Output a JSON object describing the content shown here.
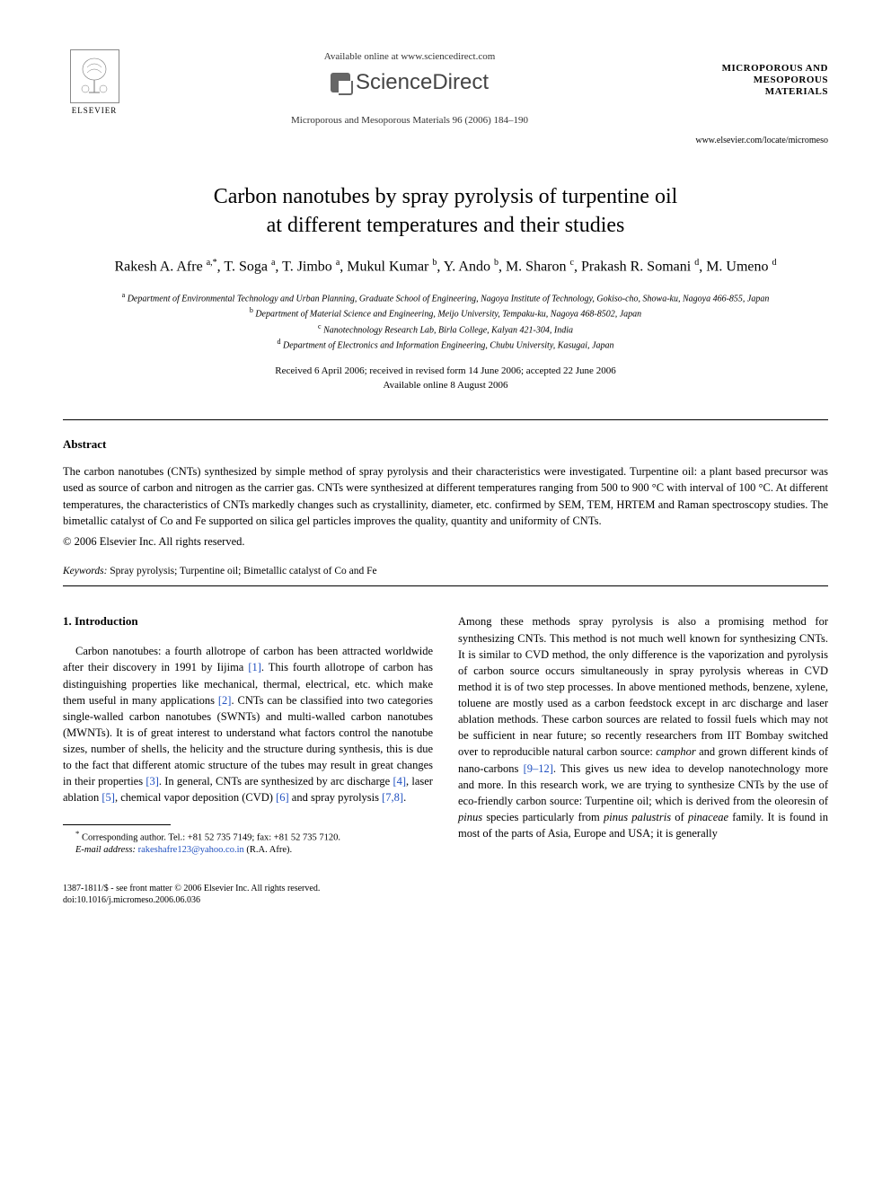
{
  "header": {
    "publisher": "ELSEVIER",
    "available_text": "Available online at www.sciencedirect.com",
    "sciencedirect": "ScienceDirect",
    "journal_ref": "Microporous and Mesoporous Materials 96 (2006) 184–190",
    "journal_title_line1": "MICROPOROUS AND",
    "journal_title_line2": "MESOPOROUS MATERIALS",
    "locate_url": "www.elsevier.com/locate/micromeso"
  },
  "title_line1": "Carbon nanotubes by spray pyrolysis of turpentine oil",
  "title_line2": "at different temperatures and their studies",
  "authors_html": "Rakesh A. Afre <sup>a,*</sup>, T. Soga <sup>a</sup>, T. Jimbo <sup>a</sup>, Mukul Kumar <sup>b</sup>, Y. Ando <sup>b</sup>, M. Sharon <sup>c</sup>, Prakash R. Somani <sup>d</sup>, M. Umeno <sup>d</sup>",
  "affiliations": {
    "a": "Department of Environmental Technology and Urban Planning, Graduate School of Engineering, Nagoya Institute of Technology, Gokiso-cho, Showa-ku, Nagoya 466-855, Japan",
    "b": "Department of Material Science and Engineering, Meijo University, Tempaku-ku, Nagoya 468-8502, Japan",
    "c": "Nanotechnology Research Lab, Birla College, Kalyan 421-304, India",
    "d": "Department of Electronics and Information Engineering, Chubu University, Kasugai, Japan"
  },
  "dates_line1": "Received 6 April 2006; received in revised form 14 June 2006; accepted 22 June 2006",
  "dates_line2": "Available online 8 August 2006",
  "abstract": {
    "heading": "Abstract",
    "text": "The carbon nanotubes (CNTs) synthesized by simple method of spray pyrolysis and their characteristics were investigated. Turpentine oil: a plant based precursor was used as source of carbon and nitrogen as the carrier gas. CNTs were synthesized at different temperatures ranging from 500 to 900 °C with interval of 100 °C. At different temperatures, the characteristics of CNTs markedly changes such as crystallinity, diameter, etc. confirmed by SEM, TEM, HRTEM and Raman spectroscopy studies. The bimetallic catalyst of Co and Fe supported on silica gel particles improves the quality, quantity and uniformity of CNTs.",
    "copyright": "© 2006 Elsevier Inc. All rights reserved."
  },
  "keywords": {
    "label": "Keywords:",
    "text": "Spray pyrolysis; Turpentine oil; Bimetallic catalyst of Co and Fe"
  },
  "section": {
    "heading": "1. Introduction",
    "col1_html": "Carbon nanotubes: a fourth allotrope of carbon has been attracted worldwide after their discovery in 1991 by Iijima <span class=\"ref-link\">[1]</span>. This fourth allotrope of carbon has distinguishing properties like mechanical, thermal, electrical, etc. which make them useful in many applications <span class=\"ref-link\">[2]</span>. CNTs can be classified into two categories single-walled carbon nanotubes (SWNTs) and multi-walled carbon nanotubes (MWNTs). It is of great interest to understand what factors control the nanotube sizes, number of shells, the helicity and the structure during synthesis, this is due to the fact that different atomic structure of the tubes may result in great changes in their properties <span class=\"ref-link\">[3]</span>. In general, CNTs are synthesized by arc discharge <span class=\"ref-link\">[4]</span>, laser ablation <span class=\"ref-link\">[5]</span>, chemical vapor deposition (CVD) <span class=\"ref-link\">[6]</span> and spray pyrolysis <span class=\"ref-link\">[7,8]</span>.",
    "col2_html": "Among these methods spray pyrolysis is also a promising method for synthesizing CNTs. This method is not much well known for synthesizing CNTs. It is similar to CVD method, the only difference is the vaporization and pyrolysis of carbon source occurs simultaneously in spray pyrolysis whereas in CVD method it is of two step processes. In above mentioned methods, benzene, xylene, toluene are mostly used as a carbon feedstock except in arc discharge and laser ablation methods. These carbon sources are related to fossil fuels which may not be sufficient in near future; so recently researchers from IIT Bombay switched over to reproducible natural carbon source: <span class=\"italic\">camphor</span> and grown different kinds of nano-carbons <span class=\"ref-link\">[9–12]</span>. This gives us new idea to develop nanotechnology more and more. In this research work, we are trying to synthesize CNTs by the use of eco-friendly carbon source: Turpentine oil; which is derived from the oleoresin of <span class=\"italic\">pinus</span> species particularly from <span class=\"italic\">pinus palustris</span> of <span class=\"italic\">pinaceae</span> family. It is found in most of the parts of Asia, Europe and USA; it is generally"
  },
  "footnote": {
    "corresponding": "Corresponding author. Tel.: +81 52 735 7149; fax: +81 52 735 7120.",
    "email_label": "E-mail address:",
    "email": "rakeshafre123@yahoo.co.in",
    "email_name": "(R.A. Afre)."
  },
  "footer": {
    "line1": "1387-1811/$ - see front matter © 2006 Elsevier Inc. All rights reserved.",
    "line2": "doi:10.1016/j.micromeso.2006.06.036"
  },
  "colors": {
    "link": "#2050c0",
    "text": "#000000",
    "bg": "#ffffff"
  },
  "typography": {
    "title_fontsize": 24,
    "author_fontsize": 16,
    "body_fontsize": 12.5,
    "affil_fontsize": 10,
    "footer_fontsize": 10
  }
}
